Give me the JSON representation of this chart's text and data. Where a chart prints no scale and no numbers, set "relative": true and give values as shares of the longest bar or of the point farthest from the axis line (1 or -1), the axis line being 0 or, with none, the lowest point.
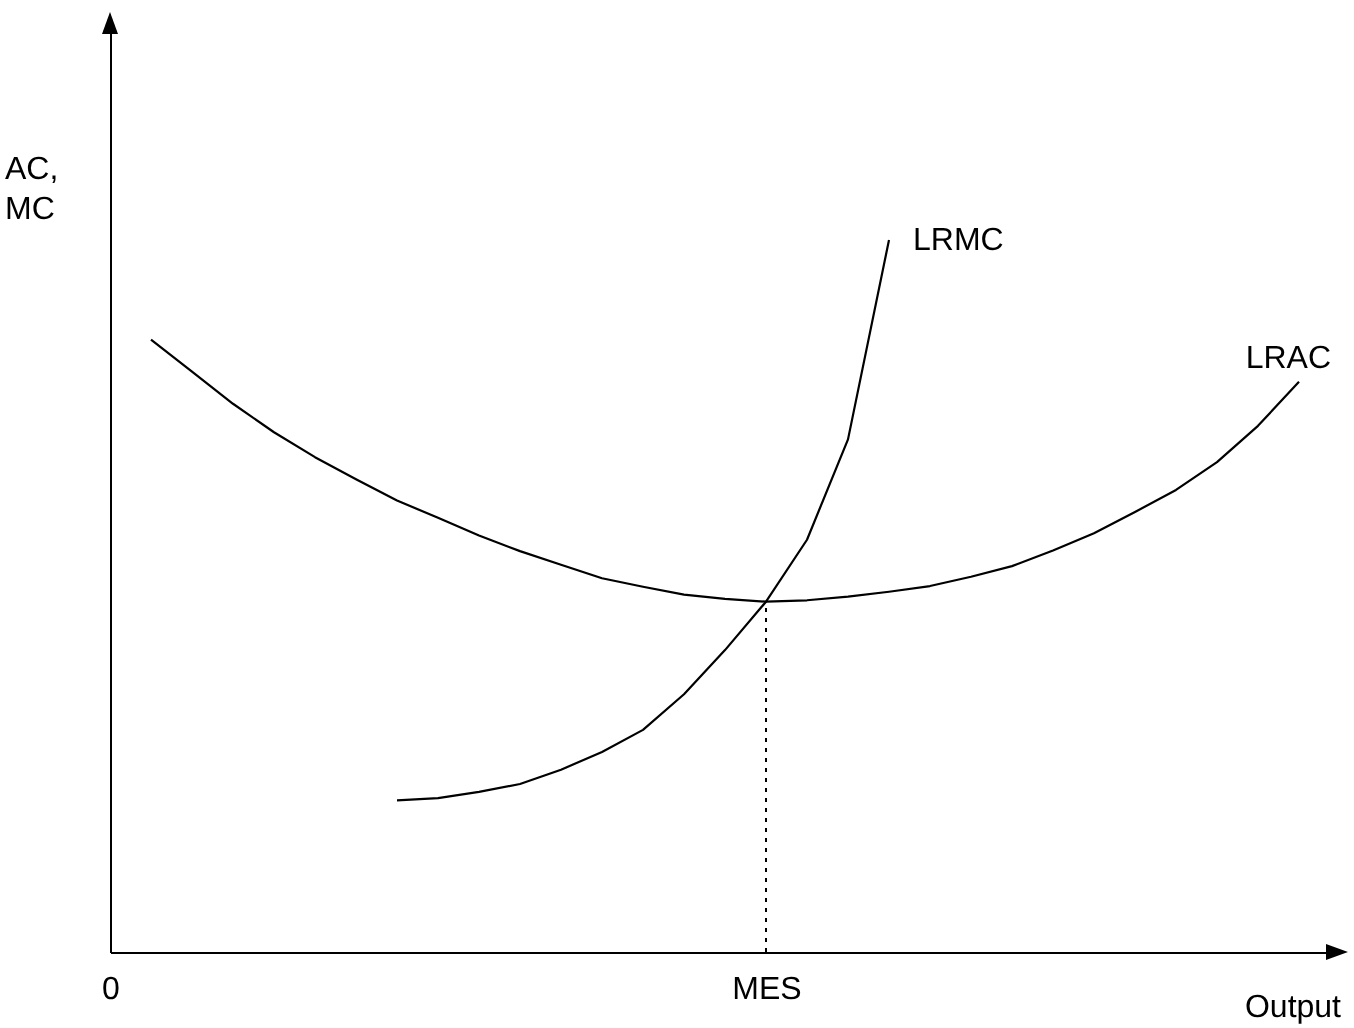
{
  "chart_data": {
    "type": "line",
    "relative": true,
    "ylabel": "AC,\nMC",
    "xlabel": "Output",
    "grid": false,
    "marker": "none",
    "tick_labels": "x",
    "line_style": "solid",
    "categories": [
      "0",
      null,
      null,
      null,
      null,
      null,
      null,
      null,
      null,
      null,
      null,
      null,
      null,
      null,
      null,
      null,
      "MES",
      null,
      null,
      null,
      null,
      null,
      null,
      null,
      null,
      null,
      null,
      null,
      null,
      null,
      null
    ],
    "series": [
      {
        "name": "LRAC",
        "color": "#000000",
        "values": [
          null,
          0.86,
          0.815,
          0.77,
          0.73,
          0.695,
          0.664,
          0.634,
          0.61,
          0.585,
          0.563,
          0.544,
          0.525,
          0.513,
          0.502,
          0.496,
          0.492,
          0.494,
          0.499,
          0.506,
          0.514,
          0.527,
          0.542,
          0.564,
          0.588,
          0.618,
          0.649,
          0.688,
          0.739,
          0.801,
          null
        ]
      },
      {
        "name": "LRMC",
        "color": "#000000",
        "values": [
          null,
          null,
          null,
          null,
          null,
          null,
          null,
          0.213,
          0.216,
          0.225,
          0.236,
          0.256,
          0.281,
          0.312,
          0.362,
          0.424,
          0.492,
          0.579,
          0.72,
          1,
          null,
          null,
          null,
          null,
          null,
          null,
          null,
          null,
          null,
          null,
          null
        ]
      }
    ],
    "ref_lines": [
      {
        "axis": "x",
        "value": "MES",
        "color": "#000000",
        "line_style": "dotted"
      }
    ]
  }
}
